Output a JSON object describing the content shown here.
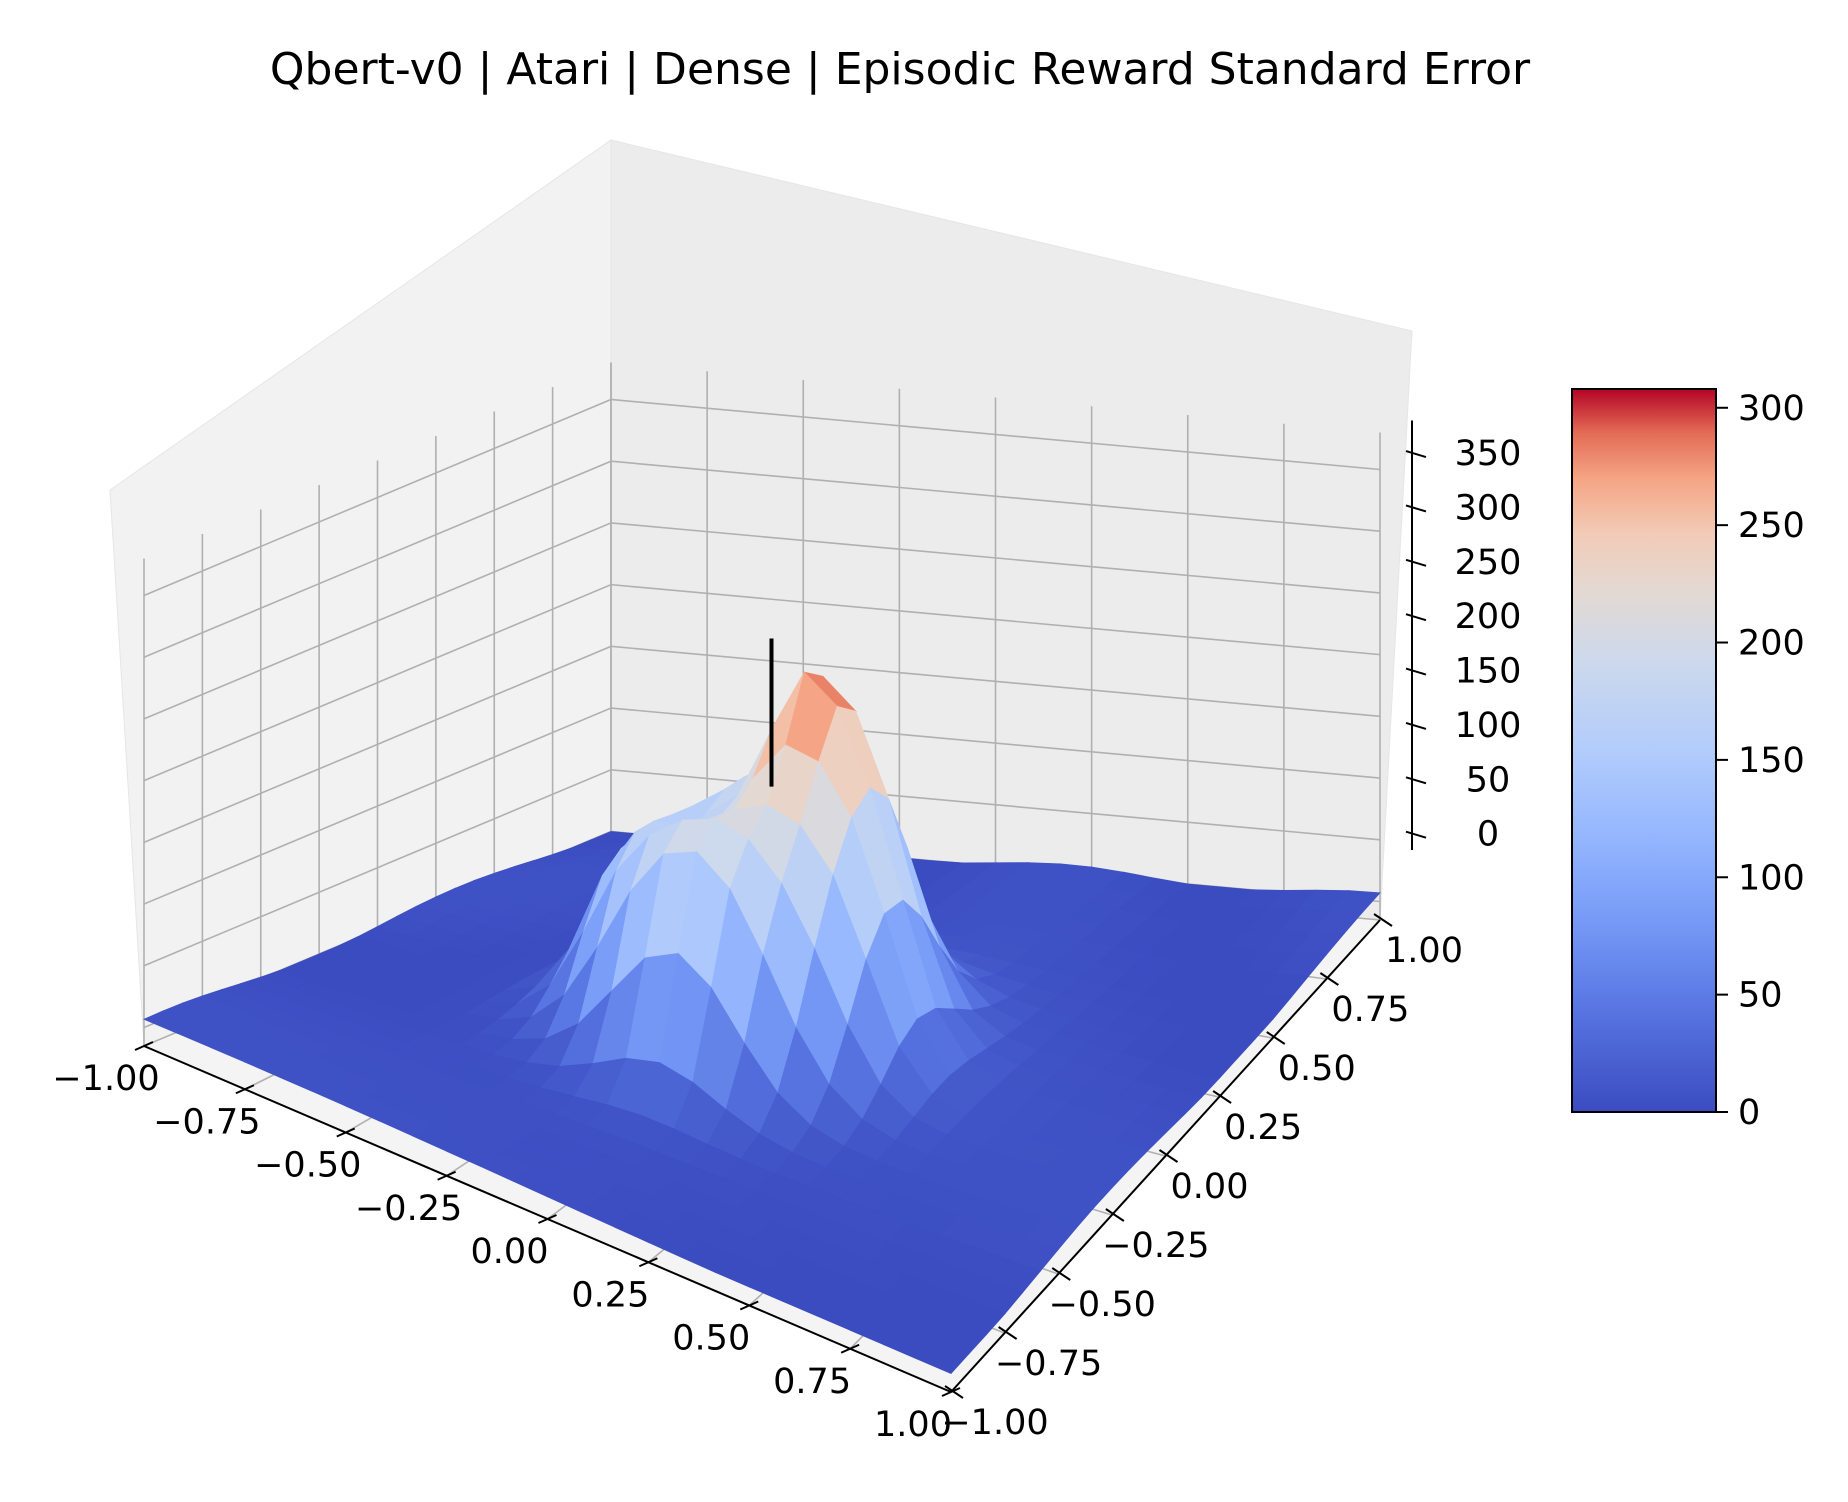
{
  "chart_data": {
    "type": "surface3d",
    "title": "Qbert-v0 | Atari | Dense | Episodic Reward Standard Error",
    "xlabel": "",
    "ylabel": "",
    "zlabel": "",
    "x_ticks": [
      "−1.00",
      "−0.75",
      "−0.50",
      "−0.25",
      "0.00",
      "0.25",
      "0.50",
      "0.75",
      "1.00"
    ],
    "y_ticks": [
      "−1.00",
      "−0.75",
      "−0.50",
      "−0.25",
      "0.00",
      "0.25",
      "0.50",
      "0.75",
      "1.00"
    ],
    "z_ticks": [
      "0",
      "50",
      "100",
      "150",
      "200",
      "250",
      "300",
      "350"
    ],
    "xlim": [
      -1,
      1
    ],
    "ylim": [
      -1,
      1
    ],
    "zlim": [
      -15,
      380
    ],
    "colormap": "coolwarm",
    "colorbar": {
      "ticks": [
        "0",
        "50",
        "100",
        "150",
        "200",
        "250",
        "300"
      ],
      "range": [
        0,
        308
      ]
    },
    "surface": {
      "baseline": 3,
      "peak_center": [
        0.0,
        -0.05
      ],
      "peak_max_approx": 308,
      "grid_size": 25
    },
    "vertical_line": {
      "x": 0.0,
      "y": 0.0,
      "z_from": 200,
      "z_to": 320
    }
  }
}
